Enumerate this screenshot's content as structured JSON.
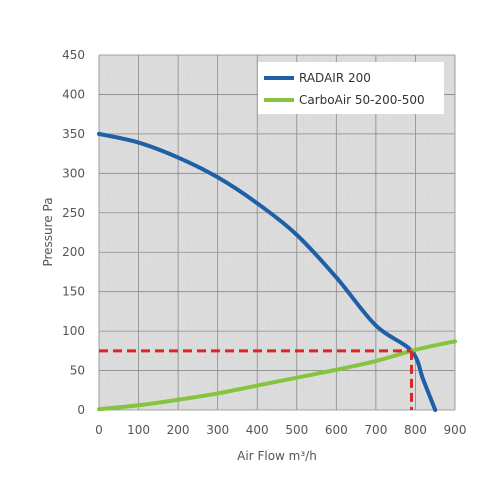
{
  "chart_data": {
    "type": "line",
    "title": "",
    "xlabel": "Air Flow m³/h",
    "ylabel": "Pressure Pa",
    "xlim": [
      0,
      900
    ],
    "ylim": [
      0,
      450
    ],
    "x_ticks": [
      "0",
      "100",
      "200",
      "300",
      "400",
      "500",
      "600",
      "700",
      "800",
      "900"
    ],
    "y_ticks": [
      "0",
      "50",
      "100",
      "150",
      "200",
      "250",
      "300",
      "350",
      "400",
      "450"
    ],
    "grid": true,
    "legend_position": "top-right",
    "series": [
      {
        "name": "RADAIR 200",
        "color": "#1f5fa6",
        "points": [
          [
            0,
            350
          ],
          [
            100,
            339
          ],
          [
            200,
            320
          ],
          [
            300,
            295
          ],
          [
            400,
            262
          ],
          [
            500,
            222
          ],
          [
            600,
            168
          ],
          [
            700,
            107
          ],
          [
            790,
            75
          ],
          [
            820,
            38
          ],
          [
            850,
            0
          ]
        ]
      },
      {
        "name": "CarboAir 50-200-500",
        "color": "#86c440",
        "points": [
          [
            0,
            1
          ],
          [
            100,
            6
          ],
          [
            200,
            13
          ],
          [
            300,
            21
          ],
          [
            400,
            31
          ],
          [
            500,
            41
          ],
          [
            600,
            51
          ],
          [
            700,
            62
          ],
          [
            790,
            75
          ],
          [
            850,
            82
          ],
          [
            900,
            87
          ]
        ]
      }
    ],
    "operating_point": {
      "x": 790,
      "y": 75,
      "color": "#e02424"
    }
  }
}
